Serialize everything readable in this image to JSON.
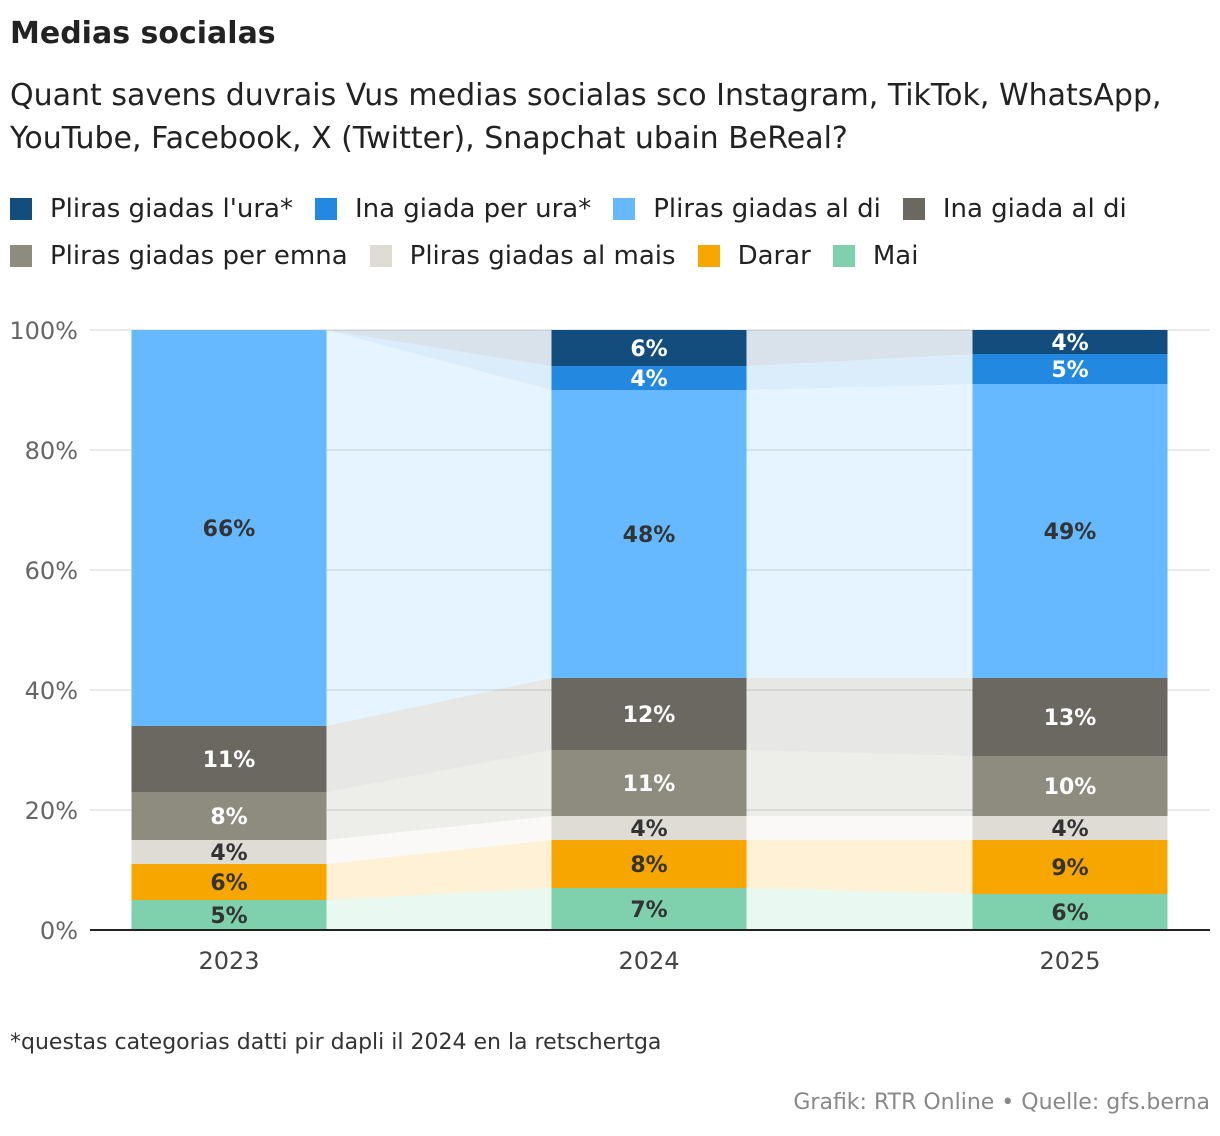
{
  "title": "Medias socialas",
  "subtitle": "Quant savens duvrais Vus medias socialas sco Instagram, TikTok, WhatsApp, YouTube, Facebook, X (Twitter), Snapchat ubain BeReal?",
  "footnote": "*questas categorias datti pir dapli il 2024 en la retschertga",
  "source": "Grafik: RTR Online • Quelle: gfs.berna",
  "chart_data": {
    "type": "bar",
    "stacked": true,
    "categories": [
      "2023",
      "2024",
      "2025"
    ],
    "ylim": [
      0,
      100
    ],
    "yticks": [
      "0%",
      "20%",
      "40%",
      "60%",
      "80%",
      "100%"
    ],
    "ytick_values": [
      0,
      20,
      40,
      60,
      80,
      100
    ],
    "series": [
      {
        "name": "Mai",
        "color": "#7fd1ae",
        "values": [
          5,
          7,
          6
        ],
        "labels": [
          "5%",
          "7%",
          "6%"
        ]
      },
      {
        "name": "Darar",
        "color": "#f7a600",
        "values": [
          6,
          8,
          9
        ],
        "labels": [
          "6%",
          "8%",
          "9%"
        ]
      },
      {
        "name": "Pliras giadas al mais",
        "color": "#dedcd4",
        "values": [
          4,
          4,
          4
        ],
        "labels": [
          "4%",
          "4%",
          "4%"
        ]
      },
      {
        "name": "Pliras giadas per emna",
        "color": "#8e8c7e",
        "values": [
          8,
          11,
          10
        ],
        "labels": [
          "8%",
          "11%",
          "10%"
        ]
      },
      {
        "name": "Ina giada al di",
        "color": "#6a6860",
        "values": [
          11,
          12,
          13
        ],
        "labels": [
          "11%",
          "12%",
          "13%"
        ]
      },
      {
        "name": "Pliras giadas al di",
        "color": "#66b9ff",
        "values": [
          66,
          48,
          49
        ],
        "labels": [
          "66%",
          "48%",
          "49%"
        ]
      },
      {
        "name": "Ina giada per ura*",
        "color": "#2288e0",
        "values": [
          0,
          4,
          5
        ],
        "labels": [
          "",
          "4%",
          "5%"
        ]
      },
      {
        "name": "Pliras giadas l'ura*",
        "color": "#134d7e",
        "values": [
          0,
          6,
          4
        ],
        "labels": [
          "",
          "6%",
          "4%"
        ]
      }
    ],
    "legend": [
      {
        "name": "Pliras giadas l'ura*",
        "color": "#134d7e"
      },
      {
        "name": "Ina giada per ura*",
        "color": "#2288e0"
      },
      {
        "name": "Pliras giadas al di",
        "color": "#66b9ff"
      },
      {
        "name": "Ina giada al di",
        "color": "#6a6860"
      },
      {
        "name": "Pliras giadas per emna",
        "color": "#8e8c7e"
      },
      {
        "name": "Pliras giadas al mais",
        "color": "#dedcd4"
      },
      {
        "name": "Darar",
        "color": "#f7a600"
      },
      {
        "name": "Mai",
        "color": "#7fd1ae"
      }
    ]
  }
}
